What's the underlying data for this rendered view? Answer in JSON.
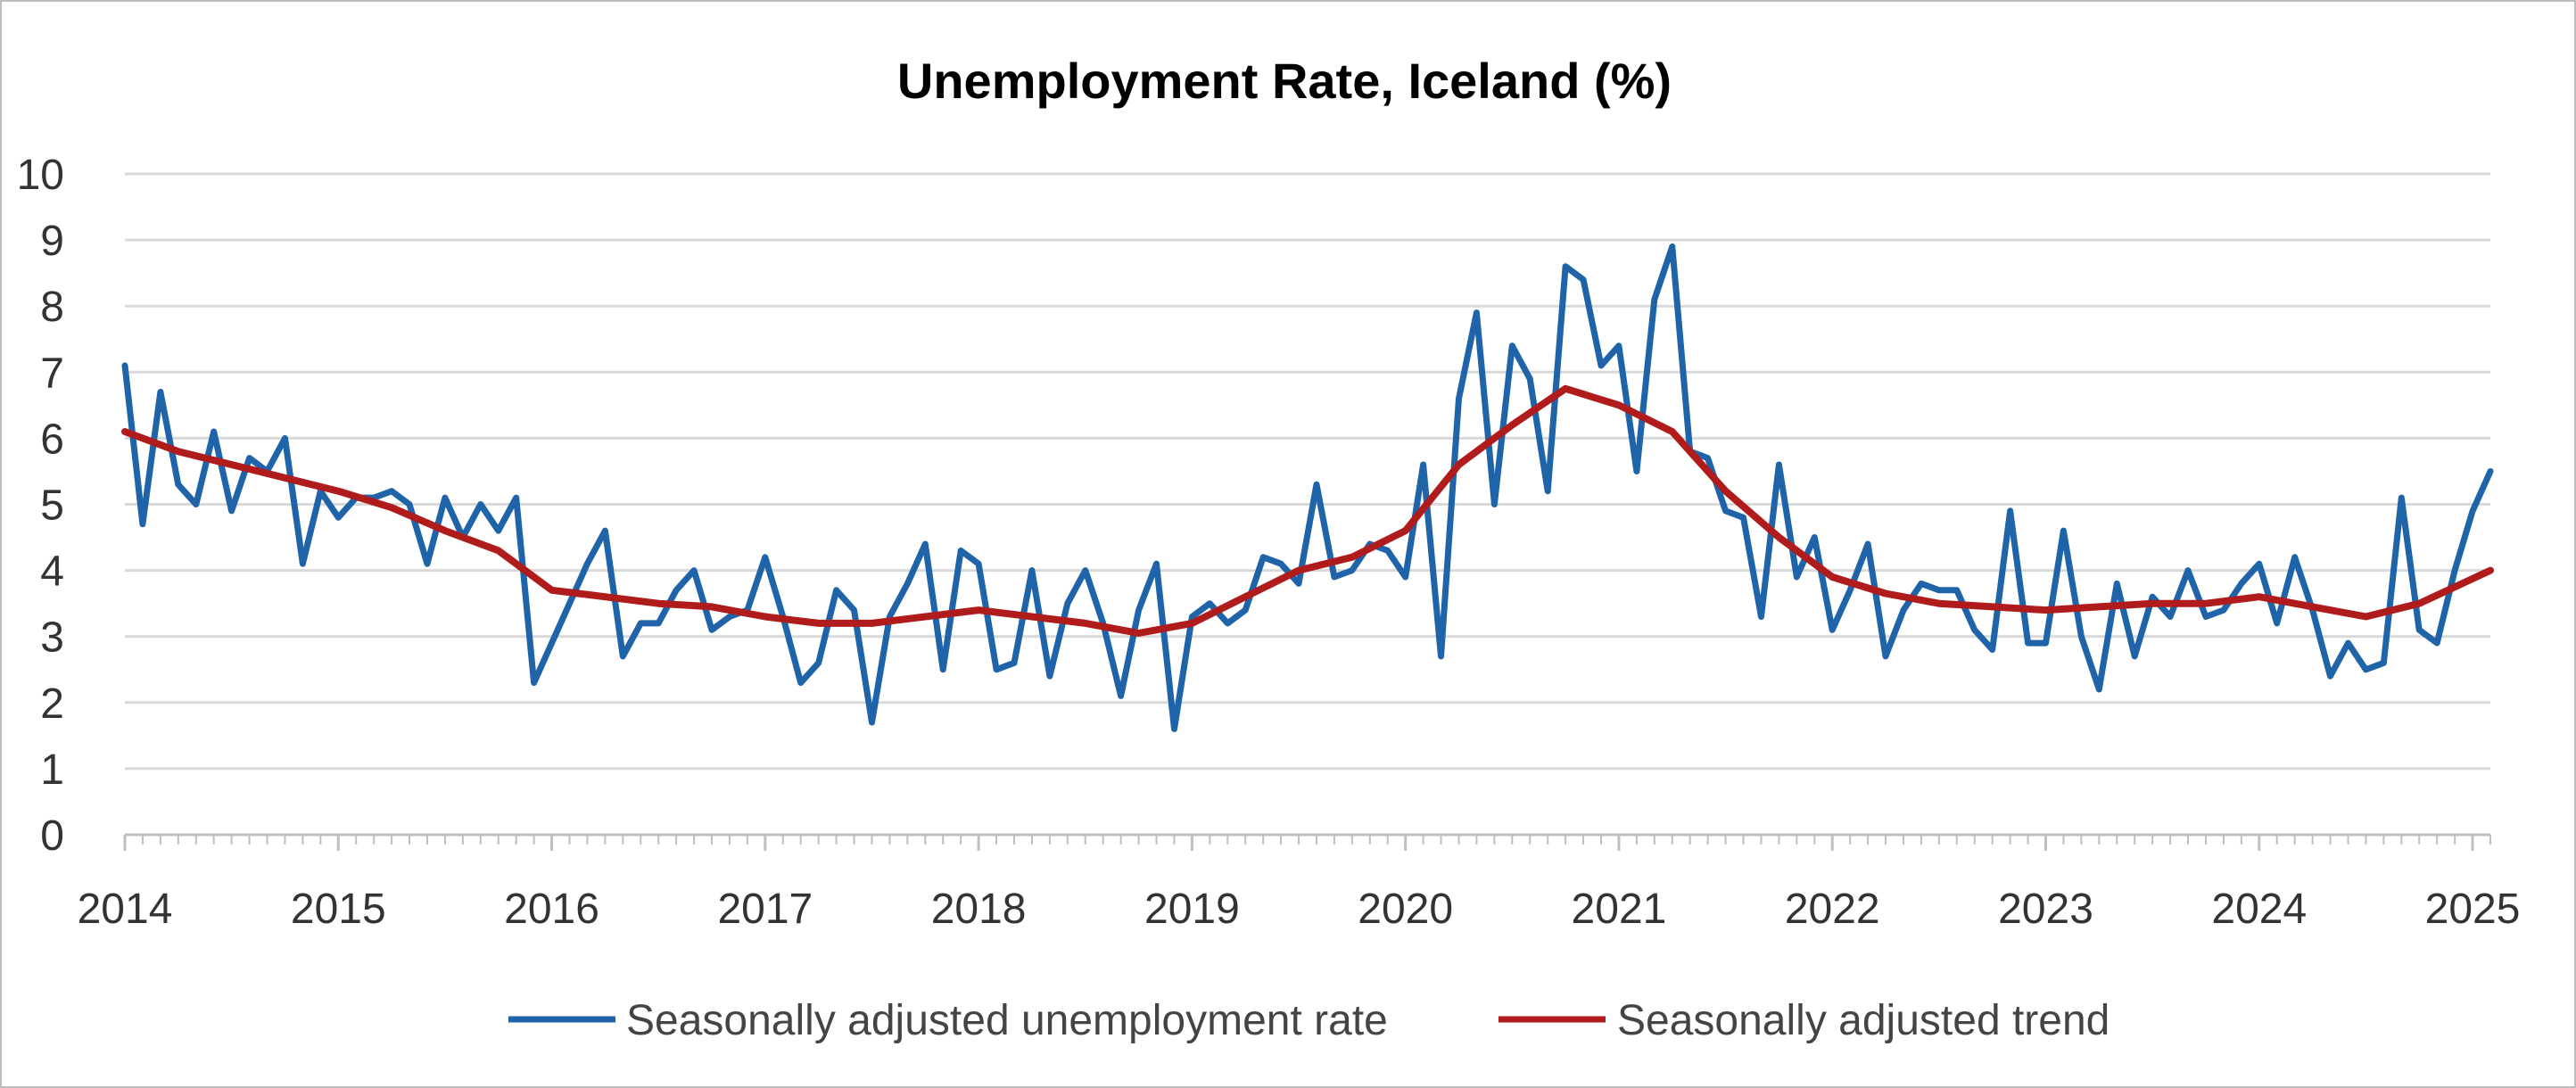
{
  "chart_data": {
    "type": "line",
    "title": "Unemployment Rate, Iceland (%)",
    "xlabel": "",
    "ylabel": "",
    "ylim": [
      0,
      10
    ],
    "yticks": [
      "0",
      "1",
      "2",
      "3",
      "4",
      "5",
      "6",
      "7",
      "8",
      "9",
      "10"
    ],
    "xlim": [
      "2014-01",
      "2025-02"
    ],
    "xticks": [
      "2014",
      "2015",
      "2016",
      "2017",
      "2018",
      "2019",
      "2020",
      "2021",
      "2022",
      "2023",
      "2024",
      "2025"
    ],
    "grid": "horizontal",
    "legend_position": "bottom",
    "series": [
      {
        "name": "Seasonally adjusted unemployment rate",
        "color": "#1f63a8",
        "x": [
          "2014-01",
          "2014-02",
          "2014-03",
          "2014-04",
          "2014-05",
          "2014-06",
          "2014-07",
          "2014-08",
          "2014-09",
          "2014-10",
          "2014-11",
          "2014-12",
          "2015-01",
          "2015-02",
          "2015-03",
          "2015-04",
          "2015-05",
          "2015-06",
          "2015-07",
          "2015-08",
          "2015-09",
          "2015-10",
          "2015-11",
          "2015-12",
          "2016-01",
          "2016-02",
          "2016-03",
          "2016-04",
          "2016-05",
          "2016-06",
          "2016-07",
          "2016-08",
          "2016-09",
          "2016-10",
          "2016-11",
          "2016-12",
          "2017-01",
          "2017-02",
          "2017-03",
          "2017-04",
          "2017-05",
          "2017-06",
          "2017-07",
          "2017-08",
          "2017-09",
          "2017-10",
          "2017-11",
          "2017-12",
          "2018-01",
          "2018-02",
          "2018-03",
          "2018-04",
          "2018-05",
          "2018-06",
          "2018-07",
          "2018-08",
          "2018-09",
          "2018-10",
          "2018-11",
          "2018-12",
          "2019-01",
          "2019-02",
          "2019-03",
          "2019-04",
          "2019-05",
          "2019-06",
          "2019-07",
          "2019-08",
          "2019-09",
          "2019-10",
          "2019-11",
          "2019-12",
          "2020-01",
          "2020-02",
          "2020-03",
          "2020-04",
          "2020-05",
          "2020-06",
          "2020-07",
          "2020-08",
          "2020-09",
          "2020-10",
          "2020-11",
          "2020-12",
          "2021-01",
          "2021-02",
          "2021-03",
          "2021-04",
          "2021-05",
          "2021-06",
          "2021-07",
          "2021-08",
          "2021-09",
          "2021-10",
          "2021-11",
          "2021-12",
          "2022-01",
          "2022-02",
          "2022-03",
          "2022-04",
          "2022-05",
          "2022-06",
          "2022-07",
          "2022-08",
          "2022-09",
          "2022-10",
          "2022-11",
          "2022-12",
          "2023-01",
          "2023-02",
          "2023-03",
          "2023-04",
          "2023-05",
          "2023-06",
          "2023-07",
          "2023-08",
          "2023-09",
          "2023-10",
          "2023-11",
          "2023-12",
          "2024-01",
          "2024-02",
          "2024-03",
          "2024-04",
          "2024-05",
          "2024-06",
          "2024-07",
          "2024-08",
          "2024-09",
          "2024-10",
          "2024-11",
          "2024-12",
          "2025-01",
          "2025-02"
        ],
        "values": [
          7.1,
          4.7,
          6.7,
          5.3,
          5.0,
          6.1,
          4.9,
          5.7,
          5.5,
          6.0,
          4.1,
          5.2,
          4.8,
          5.1,
          5.1,
          5.2,
          5.0,
          4.1,
          5.1,
          4.5,
          5.0,
          4.6,
          5.1,
          2.3,
          2.9,
          3.5,
          4.1,
          4.6,
          2.7,
          3.2,
          3.2,
          3.7,
          4.0,
          3.1,
          3.3,
          3.4,
          4.2,
          3.3,
          2.3,
          2.6,
          3.7,
          3.4,
          1.7,
          3.3,
          3.8,
          4.4,
          2.5,
          4.3,
          4.1,
          2.5,
          2.6,
          4.0,
          2.4,
          3.5,
          4.0,
          3.2,
          2.1,
          3.4,
          4.1,
          1.6,
          3.3,
          3.5,
          3.2,
          3.4,
          4.2,
          4.1,
          3.8,
          5.3,
          3.9,
          4.0,
          4.4,
          4.3,
          3.9,
          5.6,
          2.7,
          6.6,
          7.9,
          5.0,
          7.4,
          6.9,
          5.2,
          8.6,
          8.4,
          7.1,
          7.4,
          5.5,
          8.1,
          8.9,
          5.8,
          5.7,
          4.9,
          4.8,
          3.3,
          5.6,
          3.9,
          4.5,
          3.1,
          3.7,
          4.4,
          2.7,
          3.4,
          3.8,
          3.7,
          3.7,
          3.1,
          2.8,
          4.9,
          2.9,
          2.9,
          4.6,
          3.0,
          2.2,
          3.8,
          2.7,
          3.6,
          3.3,
          4.0,
          3.3,
          3.4,
          3.8,
          4.1,
          3.2,
          4.2,
          3.4,
          2.4,
          2.9,
          2.5,
          2.6,
          5.1,
          3.1,
          2.9,
          4.0,
          4.9,
          5.5
        ]
      },
      {
        "name": "Seasonally adjusted trend",
        "color": "#b01c1c",
        "x": [
          "2014-01",
          "2014-04",
          "2014-07",
          "2014-10",
          "2015-01",
          "2015-04",
          "2015-07",
          "2015-10",
          "2016-01",
          "2016-04",
          "2016-07",
          "2016-10",
          "2017-01",
          "2017-04",
          "2017-07",
          "2017-10",
          "2018-01",
          "2018-04",
          "2018-07",
          "2018-10",
          "2019-01",
          "2019-04",
          "2019-07",
          "2019-10",
          "2020-01",
          "2020-04",
          "2020-07",
          "2020-10",
          "2021-01",
          "2021-04",
          "2021-07",
          "2021-10",
          "2022-01",
          "2022-04",
          "2022-07",
          "2022-10",
          "2023-01",
          "2023-04",
          "2023-07",
          "2023-10",
          "2024-01",
          "2024-04",
          "2024-07",
          "2024-10",
          "2025-02"
        ],
        "values": [
          6.1,
          5.8,
          5.6,
          5.4,
          5.2,
          4.95,
          4.6,
          4.3,
          3.7,
          3.6,
          3.5,
          3.45,
          3.3,
          3.2,
          3.2,
          3.3,
          3.4,
          3.3,
          3.2,
          3.05,
          3.2,
          3.6,
          4.0,
          4.2,
          4.6,
          5.6,
          6.2,
          6.75,
          6.5,
          6.1,
          5.2,
          4.5,
          3.9,
          3.65,
          3.5,
          3.45,
          3.4,
          3.45,
          3.5,
          3.5,
          3.6,
          3.45,
          3.3,
          3.5,
          4.0
        ]
      }
    ]
  }
}
